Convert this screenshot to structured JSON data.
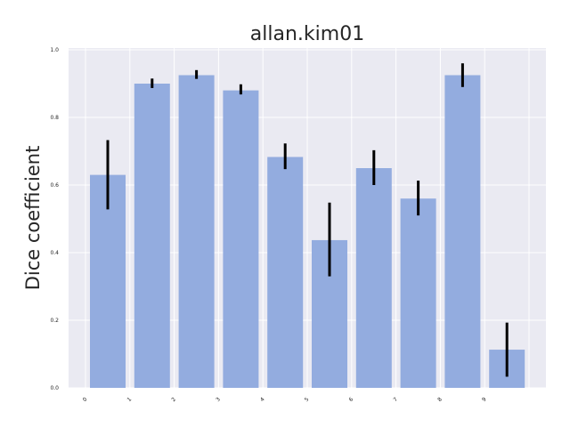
{
  "colors": {
    "plot_background": "#eaeaf2",
    "grid": "#ffffff",
    "bar": "#93acdf",
    "error_bar": "#000000"
  },
  "chart_data": {
    "type": "bar",
    "title": "allan.kim01",
    "xlabel": "",
    "ylabel": "Dice coefficient",
    "categories": [
      "0",
      "1",
      "2",
      "3",
      "4",
      "5",
      "6",
      "7",
      "8",
      "9"
    ],
    "values": [
      0.63,
      0.9,
      0.925,
      0.88,
      0.683,
      0.437,
      0.65,
      0.56,
      0.925,
      0.113
    ],
    "error_low": [
      0.528,
      0.887,
      0.914,
      0.868,
      0.647,
      0.33,
      0.6,
      0.51,
      0.89,
      0.033
    ],
    "error_high": [
      0.733,
      0.915,
      0.94,
      0.898,
      0.723,
      0.548,
      0.703,
      0.613,
      0.96,
      0.193
    ],
    "ylim": [
      0,
      1.0
    ],
    "yticks": [
      "0.0",
      "0.2",
      "0.4",
      "0.6",
      "0.8",
      "1.0"
    ],
    "grid": true
  }
}
